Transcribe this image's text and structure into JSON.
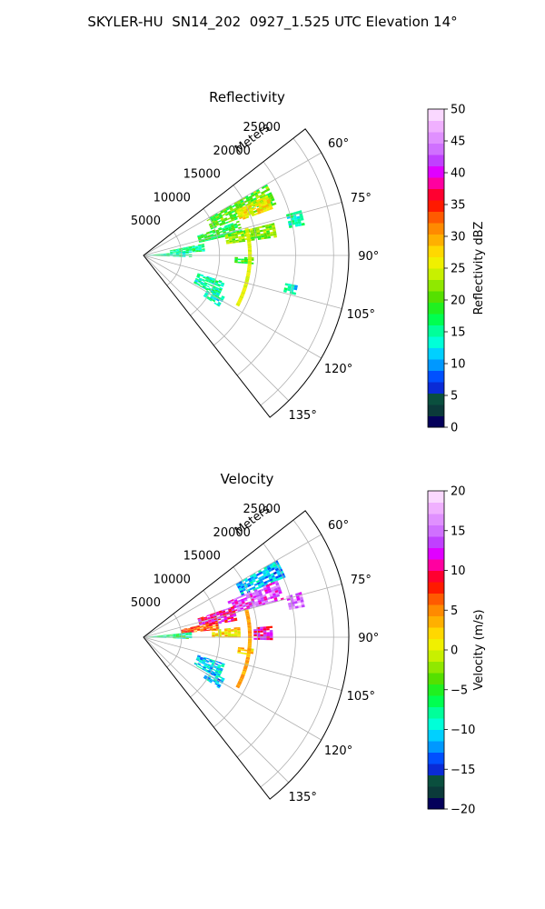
{
  "figure": {
    "title": "SKYLER-HU  SN14_202  0927_1.525 UTC Elevation 14°"
  },
  "chart_data": [
    {
      "type": "heatmap",
      "subtype": "radar-sector (polar, azimuth vs range)",
      "title": "Reflectivity",
      "range_label": "Meters",
      "range_ticks": [
        5000,
        10000,
        15000,
        20000,
        25000
      ],
      "range_tick_labels": [
        "5000",
        "10000",
        "15000",
        "20000",
        "25000"
      ],
      "range_max": 27000,
      "azimuth_range_deg": [
        52,
        142
      ],
      "azimuth_ticks": [
        60,
        75,
        90,
        105,
        120,
        135
      ],
      "azimuth_tick_labels": [
        "60°",
        "75°",
        "90°",
        "105°",
        "120°",
        "135°"
      ],
      "grid": true,
      "colorbar": {
        "label": "Reflectivity dBZ",
        "min": 0,
        "max": 50,
        "ticks": [
          0,
          5,
          10,
          15,
          20,
          25,
          30,
          35,
          40,
          45,
          50
        ],
        "tick_labels": [
          "0",
          "5",
          "10",
          "15",
          "20",
          "25",
          "30",
          "35",
          "40",
          "45",
          "50"
        ],
        "colors": [
          "#04005a",
          "#0b3a3a",
          "#0a4f3e",
          "#0a2bd6",
          "#0050ff",
          "#0098ff",
          "#00d0ff",
          "#00ffd8",
          "#00ff9a",
          "#00ff50",
          "#20f020",
          "#55e000",
          "#90e800",
          "#c8f000",
          "#f0f000",
          "#ffd800",
          "#ffb000",
          "#ff8a00",
          "#ff5a00",
          "#ff1a00",
          "#ff0030",
          "#ff00a0",
          "#e000ff",
          "#c040ff",
          "#d070ff",
          "#e090ff",
          "#f0b0ff",
          "#fad8ff"
        ]
      },
      "echoes": [
        {
          "az": [
            60,
            69
          ],
          "r": [
            9500,
            18500
          ],
          "value": 20
        },
        {
          "az": [
            64,
            70
          ],
          "r": [
            13500,
            18000
          ],
          "value": 27
        },
        {
          "az": [
            70,
            77
          ],
          "r": [
            7500,
            13000
          ],
          "value": 18
        },
        {
          "az": [
            76,
            82
          ],
          "r": [
            11000,
            17500
          ],
          "value": 22
        },
        {
          "az": [
            79,
            86
          ],
          "r": [
            3500,
            8000
          ],
          "value": 16
        },
        {
          "az": [
            85,
            92
          ],
          "r": [
            500,
            6000
          ],
          "value": 15
        },
        {
          "az": [
            91,
            94
          ],
          "r": [
            12000,
            14500
          ],
          "value": 20
        },
        {
          "az": [
            108,
            118
          ],
          "r": [
            7500,
            11000
          ],
          "value": 15
        },
        {
          "az": [
            117,
            124
          ],
          "r": [
            9500,
            12000
          ],
          "value": 14
        },
        {
          "az": [
            74,
            79
          ],
          "r": [
            19500,
            21500
          ],
          "value": 15
        },
        {
          "az": [
            101,
            104
          ],
          "r": [
            19000,
            20500
          ],
          "value": 13
        }
      ],
      "arc_band": {
        "r": 14000,
        "az": [
          75,
          118
        ],
        "value": 25
      }
    },
    {
      "type": "heatmap",
      "subtype": "radar-sector (polar, azimuth vs range)",
      "title": "Velocity",
      "range_label": "Meters",
      "range_ticks": [
        5000,
        10000,
        15000,
        20000,
        25000
      ],
      "range_tick_labels": [
        "5000",
        "10000",
        "15000",
        "20000",
        "25000"
      ],
      "range_max": 27000,
      "azimuth_range_deg": [
        52,
        142
      ],
      "azimuth_ticks": [
        60,
        75,
        90,
        105,
        120,
        135
      ],
      "azimuth_tick_labels": [
        "60°",
        "75°",
        "90°",
        "105°",
        "120°",
        "135°"
      ],
      "grid": true,
      "colorbar": {
        "label": "Velocity (m/s)",
        "min": -20,
        "max": 20,
        "ticks": [
          -20,
          -15,
          -10,
          -5,
          0,
          5,
          10,
          15,
          20
        ],
        "tick_labels": [
          "−20",
          "−15",
          "−10",
          "−5",
          "0",
          "5",
          "10",
          "15",
          "20"
        ],
        "colors": [
          "#04005a",
          "#0b3a3a",
          "#0a4f3e",
          "#0a2bd6",
          "#0050ff",
          "#0098ff",
          "#00d0ff",
          "#00ffd8",
          "#00ff9a",
          "#00ff50",
          "#20f020",
          "#55e000",
          "#90e800",
          "#c8f000",
          "#f0f000",
          "#ffd800",
          "#ffb000",
          "#ff8a00",
          "#ff5a00",
          "#ff1a00",
          "#ff0030",
          "#ff00a0",
          "#e000ff",
          "#c040ff",
          "#d070ff",
          "#e090ff",
          "#f0b0ff",
          "#fad8ff"
        ]
      },
      "echoes": [
        {
          "az": [
            60,
            67
          ],
          "r": [
            14000,
            20000
          ],
          "value": -11
        },
        {
          "az": [
            67,
            75
          ],
          "r": [
            12000,
            19000
          ],
          "value": 14
        },
        {
          "az": [
            71,
            80
          ],
          "r": [
            7500,
            12500
          ],
          "value": 11
        },
        {
          "az": [
            78,
            84
          ],
          "r": [
            5000,
            10000
          ],
          "value": 7
        },
        {
          "az": [
            84,
            92
          ],
          "r": [
            500,
            6000
          ],
          "value": -7
        },
        {
          "az": [
            84,
            90
          ],
          "r": [
            9000,
            12500
          ],
          "value": 2
        },
        {
          "az": [
            85,
            91
          ],
          "r": [
            14500,
            17000
          ],
          "value": 11
        },
        {
          "az": [
            96,
            99
          ],
          "r": [
            12500,
            14500
          ],
          "value": 2
        },
        {
          "az": [
            108,
            118
          ],
          "r": [
            7500,
            11000
          ],
          "value": -11
        },
        {
          "az": [
            117,
            124
          ],
          "r": [
            9500,
            12000
          ],
          "value": -11
        },
        {
          "az": [
            74,
            79
          ],
          "r": [
            19500,
            21500
          ],
          "value": 15
        }
      ],
      "arc_band": {
        "r": 14000,
        "az": [
          75,
          118
        ],
        "value": 4
      }
    }
  ]
}
